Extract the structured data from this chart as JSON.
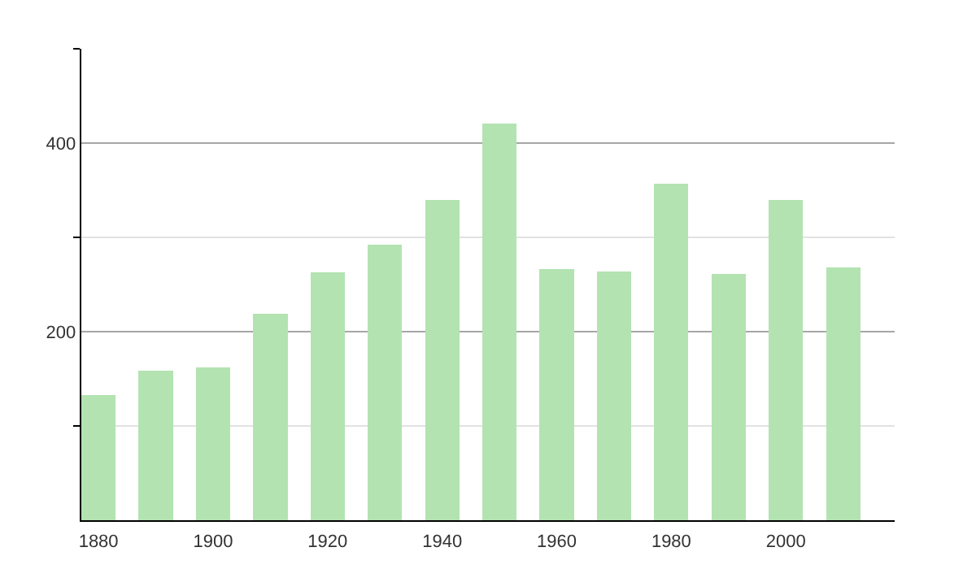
{
  "chart_data": {
    "type": "bar",
    "x": [
      1880,
      1890,
      1900,
      1910,
      1920,
      1930,
      1940,
      1950,
      1960,
      1970,
      1980,
      1990,
      2000,
      2010
    ],
    "values": [
      133,
      159,
      162,
      219,
      263,
      292,
      340,
      421,
      266,
      264,
      357,
      261,
      340,
      268
    ],
    "color": "#b3e3b1",
    "xlim": [
      1877,
      2019
    ],
    "xticks": [
      1880,
      1900,
      1920,
      1940,
      1960,
      1980,
      2000
    ],
    "ylim": [
      0,
      500
    ],
    "yticks": [
      {
        "value": 100,
        "label": null
      },
      200,
      {
        "value": 300,
        "label": null
      },
      400,
      {
        "value": 500,
        "label": null
      }
    ],
    "grid": "y"
  }
}
